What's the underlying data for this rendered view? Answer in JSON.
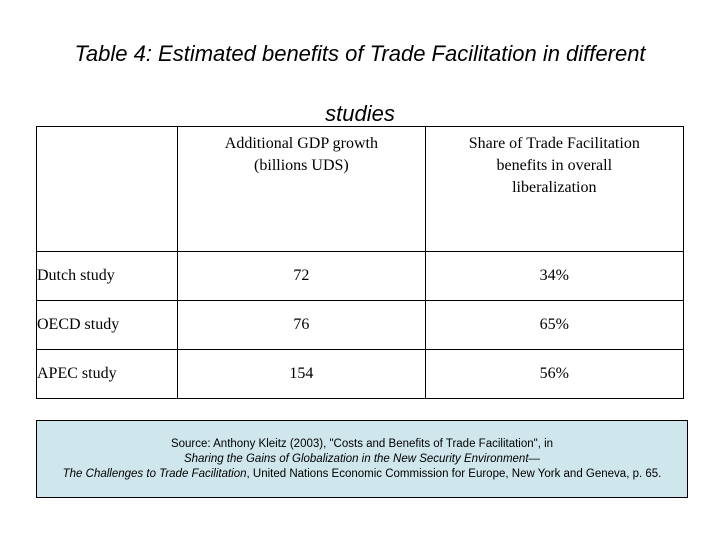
{
  "title": {
    "line1": "Table 4: Estimated benefits of Trade Facilitation in different",
    "line2": "studies"
  },
  "table": {
    "headers": {
      "label": "",
      "gdp": "Additional GDP growth (billions UDS)",
      "share": "Share of Trade Facilitation benefits in overall liberalization"
    },
    "rows": [
      {
        "study": "Dutch study",
        "gdp": "72",
        "share": "34%"
      },
      {
        "study": "OECD study",
        "gdp": "76",
        "share": "65%"
      },
      {
        "study": "APEC study",
        "gdp": "154",
        "share": "56%"
      }
    ]
  },
  "source": {
    "line1": "Source: Anthony Kleitz (2003), \"Costs and Benefits of Trade Facilitation\", in",
    "line2": "Sharing the Gains of Globalization in the New Security Environment—",
    "line3_italic": "The Challenges to Trade Facilitation",
    "line3_rest": ", United Nations Economic Commission for Europe, New York and Geneva, p. 65."
  },
  "colors": {
    "source_background": "#cfe6ec",
    "border": "#000000"
  }
}
